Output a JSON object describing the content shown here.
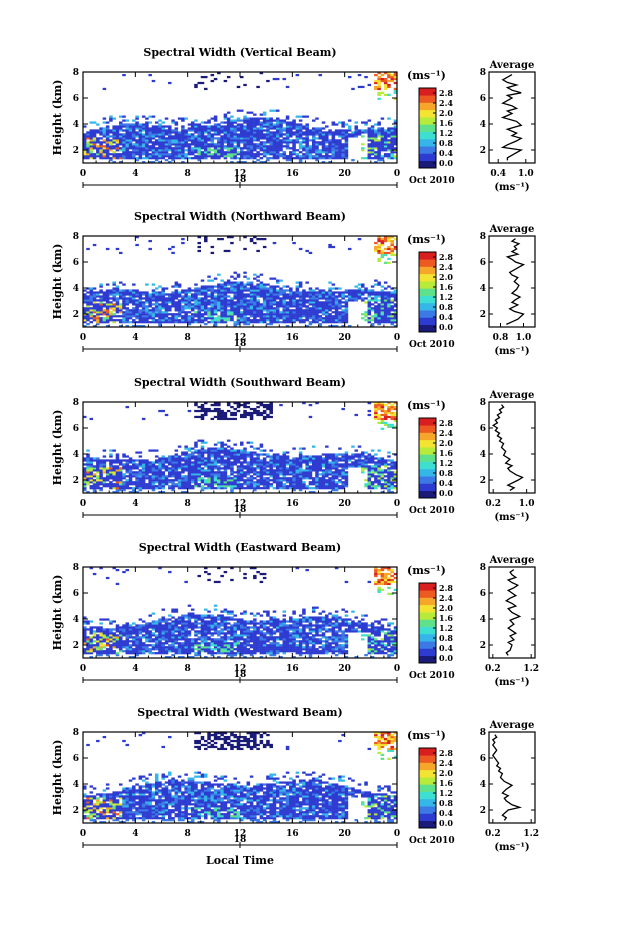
{
  "chart_data": [
    {
      "type": "heatmap",
      "title": "Spectral Width (Vertical Beam)",
      "ylabel": "Height (km)",
      "x_ticks": [
        "0",
        "4",
        "8",
        "12",
        "16",
        "20",
        "0"
      ],
      "x_range": [
        0,
        24
      ],
      "y_ticks": [
        "2",
        "4",
        "6",
        "8"
      ],
      "y_range": [
        1,
        8
      ],
      "date_marker": "18",
      "date_label": "Oct 2010",
      "colorbar": {
        "unit": "(ms⁻¹)",
        "ticks": [
          "0.0",
          "0.4",
          "0.8",
          "1.2",
          "1.6",
          "2.0",
          "2.4",
          "2.8"
        ],
        "colors": [
          "#1a1a78",
          "#2e3bd0",
          "#3b7ae6",
          "#35b6e8",
          "#3de0d0",
          "#5fe08a",
          "#b8ea3a",
          "#f4e432",
          "#f6a628",
          "#ec5a22",
          "#d81e1e"
        ]
      },
      "profile": {
        "title": "Average",
        "xlabel": "(ms⁻¹)",
        "x_ticks": [
          "0.4",
          "1.0"
        ],
        "x_range": [
          0.2,
          1.2
        ],
        "y_ticks": [
          "2",
          "4",
          "6",
          "8"
        ],
        "y_range": [
          1,
          8
        ],
        "x": [
          0.6,
          0.6,
          0.7,
          0.9,
          0.5,
          0.6,
          0.8,
          0.9,
          0.7,
          0.8,
          0.6,
          0.9,
          0.8,
          0.5,
          0.7,
          0.6,
          0.8,
          0.7,
          0.5,
          0.6,
          0.7,
          0.6,
          0.9,
          0.7,
          0.6,
          0.8,
          0.6,
          0.5,
          0.6,
          0.7
        ],
        "y": [
          1.2,
          1.4,
          1.6,
          2.0,
          2.2,
          2.4,
          2.7,
          2.9,
          3.1,
          3.3,
          3.6,
          3.9,
          4.2,
          4.5,
          4.8,
          5.0,
          5.2,
          5.4,
          5.6,
          5.8,
          6.0,
          6.2,
          6.4,
          6.6,
          6.8,
          7.0,
          7.2,
          7.4,
          7.6,
          7.8
        ]
      }
    },
    {
      "type": "heatmap",
      "title": "Spectral Width (Northward Beam)",
      "ylabel": "Height (km)",
      "x_ticks": [
        "0",
        "4",
        "8",
        "12",
        "16",
        "20",
        "0"
      ],
      "x_range": [
        0,
        24
      ],
      "y_ticks": [
        "2",
        "4",
        "6",
        "8"
      ],
      "y_range": [
        1,
        8
      ],
      "date_marker": "18",
      "date_label": "Oct 2010",
      "colorbar": {
        "unit": "(ms⁻¹)",
        "ticks": [
          "0.0",
          "0.4",
          "0.8",
          "1.2",
          "1.6",
          "2.0",
          "2.4",
          "2.8"
        ],
        "colors": [
          "#1a1a78",
          "#2e3bd0",
          "#3b7ae6",
          "#35b6e8",
          "#3de0d0",
          "#5fe08a",
          "#b8ea3a",
          "#f4e432",
          "#f6a628",
          "#ec5a22",
          "#d81e1e"
        ]
      },
      "profile": {
        "title": "Average",
        "xlabel": "(ms⁻¹)",
        "x_ticks": [
          "0.8",
          "1.0"
        ],
        "x_range": [
          0.7,
          1.1
        ],
        "y_ticks": [
          "2",
          "4",
          "6",
          "8"
        ],
        "y_range": [
          1,
          8
        ],
        "x": [
          0.85,
          0.9,
          0.95,
          1.0,
          0.92,
          0.88,
          0.95,
          0.9,
          0.93,
          0.97,
          0.9,
          0.94,
          0.96,
          0.92,
          0.95,
          0.9,
          0.88,
          0.92,
          0.96,
          1.0,
          0.93,
          0.9,
          0.86,
          0.95,
          0.9,
          0.94,
          0.92,
          0.96,
          0.9,
          0.93
        ],
        "y": [
          1.2,
          1.4,
          1.6,
          2.0,
          2.2,
          2.4,
          2.7,
          2.9,
          3.1,
          3.3,
          3.6,
          3.9,
          4.2,
          4.5,
          4.8,
          5.0,
          5.2,
          5.4,
          5.6,
          5.8,
          6.0,
          6.2,
          6.4,
          6.6,
          6.8,
          7.0,
          7.2,
          7.4,
          7.6,
          7.8
        ]
      }
    },
    {
      "type": "heatmap",
      "title": "Spectral Width (Southward Beam)",
      "ylabel": "Height (km)",
      "x_ticks": [
        "0",
        "4",
        "8",
        "12",
        "16",
        "20",
        "0"
      ],
      "x_range": [
        0,
        24
      ],
      "y_ticks": [
        "2",
        "4",
        "6",
        "8"
      ],
      "y_range": [
        1,
        8
      ],
      "date_marker": "18",
      "date_label": "Oct 2010",
      "colorbar": {
        "unit": "(ms⁻¹)",
        "ticks": [
          "0.0",
          "0.4",
          "0.8",
          "1.2",
          "1.6",
          "2.0",
          "2.4",
          "2.8"
        ],
        "colors": [
          "#1a1a78",
          "#2e3bd0",
          "#3b7ae6",
          "#35b6e8",
          "#3de0d0",
          "#5fe08a",
          "#b8ea3a",
          "#f4e432",
          "#f6a628",
          "#ec5a22",
          "#d81e1e"
        ]
      },
      "profile": {
        "title": "Average",
        "xlabel": "(ms⁻¹)",
        "x_ticks": [
          "0.2",
          "1.0"
        ],
        "x_range": [
          0.1,
          1.2
        ],
        "y_ticks": [
          "2",
          "4",
          "6",
          "8"
        ],
        "y_range": [
          1,
          8
        ],
        "x": [
          0.6,
          0.7,
          0.55,
          0.8,
          0.9,
          0.75,
          0.6,
          0.55,
          0.65,
          0.5,
          0.6,
          0.45,
          0.5,
          0.4,
          0.45,
          0.35,
          0.4,
          0.3,
          0.35,
          0.25,
          0.3,
          0.2,
          0.3,
          0.25,
          0.35,
          0.3,
          0.4,
          0.35,
          0.45,
          0.4
        ],
        "y": [
          1.2,
          1.4,
          1.6,
          2.0,
          2.2,
          2.4,
          2.7,
          2.9,
          3.1,
          3.3,
          3.6,
          3.9,
          4.2,
          4.5,
          4.8,
          5.0,
          5.2,
          5.4,
          5.6,
          5.8,
          6.0,
          6.2,
          6.4,
          6.6,
          6.8,
          7.0,
          7.2,
          7.4,
          7.6,
          7.8
        ]
      }
    },
    {
      "type": "heatmap",
      "title": "Spectral Width (Eastward Beam)",
      "ylabel": "Height (km)",
      "x_ticks": [
        "0",
        "4",
        "8",
        "12",
        "16",
        "20",
        "0"
      ],
      "x_range": [
        0,
        24
      ],
      "y_ticks": [
        "2",
        "4",
        "6",
        "8"
      ],
      "y_range": [
        1,
        8
      ],
      "date_marker": "18",
      "date_label": "Oct 2010",
      "colorbar": {
        "unit": "(ms⁻¹)",
        "ticks": [
          "0.0",
          "0.4",
          "0.8",
          "1.2",
          "1.6",
          "2.0",
          "2.4",
          "2.8"
        ],
        "colors": [
          "#1a1a78",
          "#2e3bd0",
          "#3b7ae6",
          "#35b6e8",
          "#3de0d0",
          "#5fe08a",
          "#b8ea3a",
          "#f4e432",
          "#f6a628",
          "#ec5a22",
          "#d81e1e"
        ]
      },
      "profile": {
        "title": "Average",
        "xlabel": "(ms⁻¹)",
        "x_ticks": [
          "0.2",
          "1.2"
        ],
        "x_range": [
          0.1,
          1.3
        ],
        "y_ticks": [
          "2",
          "4",
          "6",
          "8"
        ],
        "y_range": [
          1,
          8
        ],
        "x": [
          0.6,
          0.55,
          0.65,
          0.7,
          0.6,
          0.75,
          0.65,
          0.8,
          0.7,
          0.6,
          0.75,
          0.65,
          0.9,
          0.7,
          0.6,
          0.8,
          0.7,
          0.55,
          0.65,
          0.8,
          0.7,
          0.6,
          0.75,
          0.85,
          0.7,
          0.6,
          0.8,
          0.7,
          0.65,
          0.75
        ],
        "y": [
          1.2,
          1.4,
          1.6,
          2.0,
          2.2,
          2.4,
          2.7,
          2.9,
          3.1,
          3.3,
          3.6,
          3.9,
          4.2,
          4.5,
          4.8,
          5.0,
          5.2,
          5.4,
          5.6,
          5.8,
          6.0,
          6.2,
          6.4,
          6.6,
          6.8,
          7.0,
          7.2,
          7.4,
          7.6,
          7.8
        ]
      }
    },
    {
      "type": "heatmap",
      "title": "Spectral Width (Westward Beam)",
      "ylabel": "Height (km)",
      "xlabel": "Local Time",
      "x_ticks": [
        "0",
        "4",
        "8",
        "12",
        "16",
        "20",
        "0"
      ],
      "x_range": [
        0,
        24
      ],
      "y_ticks": [
        "2",
        "4",
        "6",
        "8"
      ],
      "y_range": [
        1,
        8
      ],
      "date_marker": "18",
      "date_label": "Oct 2010",
      "colorbar": {
        "unit": "(ms⁻¹)",
        "ticks": [
          "0.0",
          "0.4",
          "0.8",
          "1.2",
          "1.6",
          "2.0",
          "2.4",
          "2.8"
        ],
        "colors": [
          "#1a1a78",
          "#2e3bd0",
          "#3b7ae6",
          "#35b6e8",
          "#3de0d0",
          "#5fe08a",
          "#b8ea3a",
          "#f4e432",
          "#f6a628",
          "#ec5a22",
          "#d81e1e"
        ]
      },
      "profile": {
        "title": "Average",
        "xlabel": "(ms⁻¹)",
        "x_ticks": [
          "0.2",
          "1.2"
        ],
        "x_range": [
          0.1,
          1.3
        ],
        "y_ticks": [
          "2",
          "4",
          "6",
          "8"
        ],
        "y_range": [
          1,
          8
        ],
        "x": [
          0.5,
          0.55,
          0.45,
          0.6,
          0.9,
          0.7,
          0.55,
          0.5,
          0.6,
          0.45,
          0.55,
          0.7,
          0.5,
          0.4,
          0.45,
          0.35,
          0.4,
          0.3,
          0.35,
          0.3,
          0.25,
          0.2,
          0.25,
          0.3,
          0.25,
          0.2,
          0.25,
          0.2,
          0.3,
          0.25
        ],
        "y": [
          1.2,
          1.4,
          1.6,
          2.0,
          2.2,
          2.4,
          2.7,
          2.9,
          3.1,
          3.3,
          3.6,
          3.9,
          4.2,
          4.5,
          4.8,
          5.0,
          5.2,
          5.4,
          5.6,
          5.8,
          6.0,
          6.2,
          6.4,
          6.6,
          6.8,
          7.0,
          7.2,
          7.4,
          7.6,
          7.8
        ]
      }
    }
  ]
}
